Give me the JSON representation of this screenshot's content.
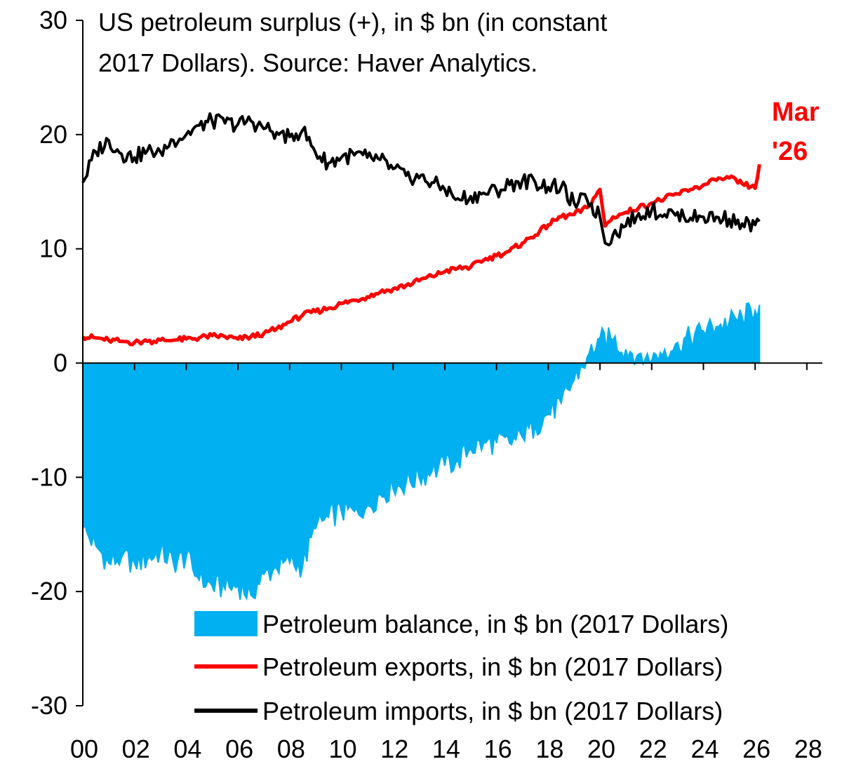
{
  "chart_data": {
    "type": "bar",
    "title_lines": [
      "US petroleum surplus (+), in $ bn (in constant",
      "2017 Dollars). Source: Haver Analytics."
    ],
    "annotation_lines": [
      "Mar",
      "'26"
    ],
    "colors": {
      "balance": "#00B0F0",
      "exports": "#FF0000",
      "imports": "#000000",
      "annotation": "#FF0000"
    },
    "xlim": [
      2000,
      2028.6
    ],
    "ylim": [
      -30,
      30
    ],
    "x_ticks": [
      {
        "value": 2000,
        "label": "00"
      },
      {
        "value": 2002,
        "label": "02"
      },
      {
        "value": 2004,
        "label": "04"
      },
      {
        "value": 2006,
        "label": "06"
      },
      {
        "value": 2008,
        "label": "08"
      },
      {
        "value": 2010,
        "label": "10"
      },
      {
        "value": 2012,
        "label": "12"
      },
      {
        "value": 2014,
        "label": "14"
      },
      {
        "value": 2016,
        "label": "16"
      },
      {
        "value": 2018,
        "label": "18"
      },
      {
        "value": 2020,
        "label": "20"
      },
      {
        "value": 2022,
        "label": "22"
      },
      {
        "value": 2024,
        "label": "24"
      },
      {
        "value": 2026,
        "label": "26"
      },
      {
        "value": 2028,
        "label": "28"
      }
    ],
    "y_ticks": [
      {
        "value": 30,
        "label": "30"
      },
      {
        "value": 20,
        "label": "20"
      },
      {
        "value": 10,
        "label": "10"
      },
      {
        "value": 0,
        "label": "0"
      },
      {
        "value": -10,
        "label": "-10"
      },
      {
        "value": -20,
        "label": "-20"
      },
      {
        "value": -30,
        "label": "-30"
      }
    ],
    "legend": [
      {
        "key": "balance",
        "label": "Petroleum balance, in $ bn (2017 Dollars)",
        "style": "area"
      },
      {
        "key": "exports",
        "label": "Petroleum exports, in $ bn (2017 Dollars)",
        "style": "line"
      },
      {
        "key": "imports",
        "label": "Petroleum imports, in $ bn (2017 Dollars)",
        "style": "line"
      }
    ],
    "frequency": "monthly",
    "series": [
      {
        "key": "balance",
        "name": "Petroleum balance, in $ bn (2017 Dollars)",
        "x": [
          2000.0,
          2000.5,
          2001.0,
          2001.5,
          2002.0,
          2002.5,
          2003.0,
          2003.5,
          2004.0,
          2004.5,
          2005.0,
          2005.5,
          2006.0,
          2006.5,
          2007.0,
          2007.5,
          2008.0,
          2008.5,
          2009.0,
          2009.5,
          2010.0,
          2010.5,
          2011.0,
          2011.5,
          2012.0,
          2012.5,
          2013.0,
          2013.5,
          2014.0,
          2014.5,
          2015.0,
          2015.5,
          2016.0,
          2016.5,
          2017.0,
          2017.5,
          2018.0,
          2018.5,
          2019.0,
          2019.5,
          2020.0,
          2020.5,
          2021.0,
          2021.5,
          2022.0,
          2022.5,
          2023.0,
          2023.5,
          2024.0,
          2024.5,
          2025.0,
          2025.5,
          2026.0,
          2026.17
        ],
        "y": [
          -14.5,
          -16.0,
          -17.5,
          -17.0,
          -17.5,
          -17.2,
          -16.5,
          -17.5,
          -17.0,
          -19.0,
          -19.5,
          -19.8,
          -19.5,
          -20.3,
          -18.5,
          -18.0,
          -17.5,
          -17.8,
          -14.5,
          -13.5,
          -13.0,
          -13.0,
          -12.5,
          -11.5,
          -11.0,
          -10.5,
          -10.0,
          -9.5,
          -9.0,
          -8.5,
          -7.5,
          -7.0,
          -7.0,
          -7.0,
          -6.5,
          -5.5,
          -4.5,
          -3.5,
          -1.5,
          0.5,
          2.2,
          2.0,
          1.2,
          0.8,
          0.2,
          1.2,
          1.8,
          2.2,
          2.8,
          3.2,
          3.6,
          4.0,
          4.6,
          5.1
        ]
      },
      {
        "key": "exports",
        "name": "Petroleum exports, in $ bn (2017 Dollars)",
        "x": [
          2000.0,
          2000.5,
          2001.0,
          2001.5,
          2002.0,
          2002.5,
          2003.0,
          2003.5,
          2004.0,
          2004.5,
          2005.0,
          2005.5,
          2006.0,
          2006.5,
          2007.0,
          2007.5,
          2008.0,
          2008.5,
          2009.0,
          2009.5,
          2010.0,
          2010.5,
          2011.0,
          2011.5,
          2012.0,
          2012.5,
          2013.0,
          2013.5,
          2014.0,
          2014.5,
          2015.0,
          2015.5,
          2016.0,
          2016.5,
          2017.0,
          2017.5,
          2018.0,
          2018.5,
          2019.0,
          2019.5,
          2020.0,
          2020.2,
          2020.5,
          2021.0,
          2021.5,
          2022.0,
          2022.5,
          2023.0,
          2023.5,
          2024.0,
          2024.5,
          2025.0,
          2025.5,
          2026.0,
          2026.17
        ],
        "y": [
          2.3,
          2.2,
          2.0,
          1.9,
          1.8,
          1.9,
          2.0,
          2.0,
          2.1,
          2.2,
          2.4,
          2.3,
          2.1,
          2.3,
          2.6,
          3.0,
          3.6,
          4.2,
          4.5,
          4.8,
          5.2,
          5.5,
          5.8,
          6.2,
          6.5,
          6.8,
          7.2,
          7.6,
          8.0,
          8.3,
          8.4,
          9.0,
          9.4,
          9.8,
          10.5,
          11.2,
          12.1,
          12.8,
          13.0,
          13.6,
          15.2,
          12.0,
          12.8,
          13.2,
          13.6,
          14.0,
          14.4,
          14.8,
          15.2,
          15.6,
          16.0,
          16.2,
          15.7,
          15.3,
          17.4
        ]
      },
      {
        "key": "imports",
        "name": "Petroleum imports, in $ bn (2017 Dollars)",
        "x": [
          2000.0,
          2000.5,
          2001.0,
          2001.5,
          2002.0,
          2002.5,
          2003.0,
          2003.5,
          2004.0,
          2004.5,
          2005.0,
          2005.5,
          2006.0,
          2006.5,
          2007.0,
          2007.5,
          2008.0,
          2008.5,
          2009.0,
          2009.5,
          2010.0,
          2010.5,
          2011.0,
          2011.5,
          2012.0,
          2012.5,
          2013.0,
          2013.5,
          2014.0,
          2014.5,
          2015.0,
          2015.5,
          2016.0,
          2016.5,
          2017.0,
          2017.5,
          2018.0,
          2018.5,
          2019.0,
          2019.5,
          2020.0,
          2020.2,
          2020.5,
          2021.0,
          2021.5,
          2022.0,
          2022.5,
          2023.0,
          2023.5,
          2024.0,
          2024.5,
          2025.0,
          2025.5,
          2026.0,
          2026.17
        ],
        "y": [
          15.8,
          18.5,
          19.5,
          18.3,
          18.0,
          18.6,
          18.5,
          19.5,
          20.0,
          20.8,
          21.2,
          21.0,
          20.9,
          21.2,
          20.5,
          20.2,
          19.8,
          20.4,
          18.4,
          17.5,
          18.0,
          18.2,
          18.0,
          17.8,
          17.0,
          16.4,
          16.2,
          15.8,
          15.2,
          14.4,
          14.6,
          14.9,
          15.1,
          15.6,
          16.0,
          15.8,
          15.4,
          15.4,
          14.0,
          14.3,
          12.8,
          10.5,
          11.2,
          12.0,
          13.1,
          13.4,
          13.0,
          13.2,
          12.7,
          12.8,
          12.8,
          12.6,
          12.2,
          12.1,
          12.4
        ]
      }
    ]
  }
}
